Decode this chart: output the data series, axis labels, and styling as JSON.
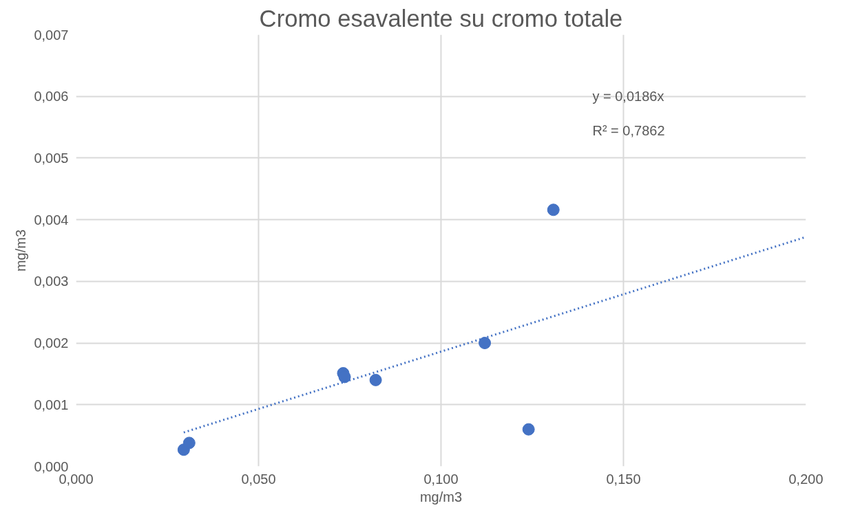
{
  "chart_data": {
    "type": "scatter",
    "title": "Cromo esavalente su cromo totale",
    "xlabel": "mg/m3",
    "ylabel": "mg/m3",
    "x": [
      0.0295,
      0.031,
      0.0732,
      0.0736,
      0.0821,
      0.112,
      0.124,
      0.1308
    ],
    "series": [
      {
        "color": "#4472c4",
        "marker": "circle",
        "values": [
          0.00027,
          0.00038,
          0.00151,
          0.00145,
          0.0014,
          0.002,
          0.0006,
          0.00416
        ]
      },
      {
        "type": "line",
        "color": "#4472c4",
        "line_style": "dotted",
        "marker": "none",
        "x": [
          0.0295,
          0.2
        ],
        "values": [
          0.00055,
          0.00372
        ]
      }
    ],
    "annotations": [
      "y = 0,0186x",
      "R² = 0,7862"
    ],
    "xlim": [
      0,
      0.2
    ],
    "ylim": [
      0,
      0.007
    ],
    "xticks": [
      {
        "value": 0,
        "label": "0,000"
      },
      {
        "value": 0.05,
        "label": "0,050"
      },
      {
        "value": 0.1,
        "label": "0,100"
      },
      {
        "value": 0.15,
        "label": "0,150"
      },
      {
        "value": 0.2,
        "label": "0,200"
      }
    ],
    "yticks": [
      {
        "value": 0,
        "label": "0,000"
      },
      {
        "value": 0.001,
        "label": "0,001"
      },
      {
        "value": 0.002,
        "label": "0,002"
      },
      {
        "value": 0.003,
        "label": "0,003"
      },
      {
        "value": 0.004,
        "label": "0,004"
      },
      {
        "value": 0.005,
        "label": "0,005"
      },
      {
        "value": 0.006,
        "label": "0,006"
      },
      {
        "value": 0.007,
        "label": "0,007"
      }
    ],
    "grid": true
  }
}
